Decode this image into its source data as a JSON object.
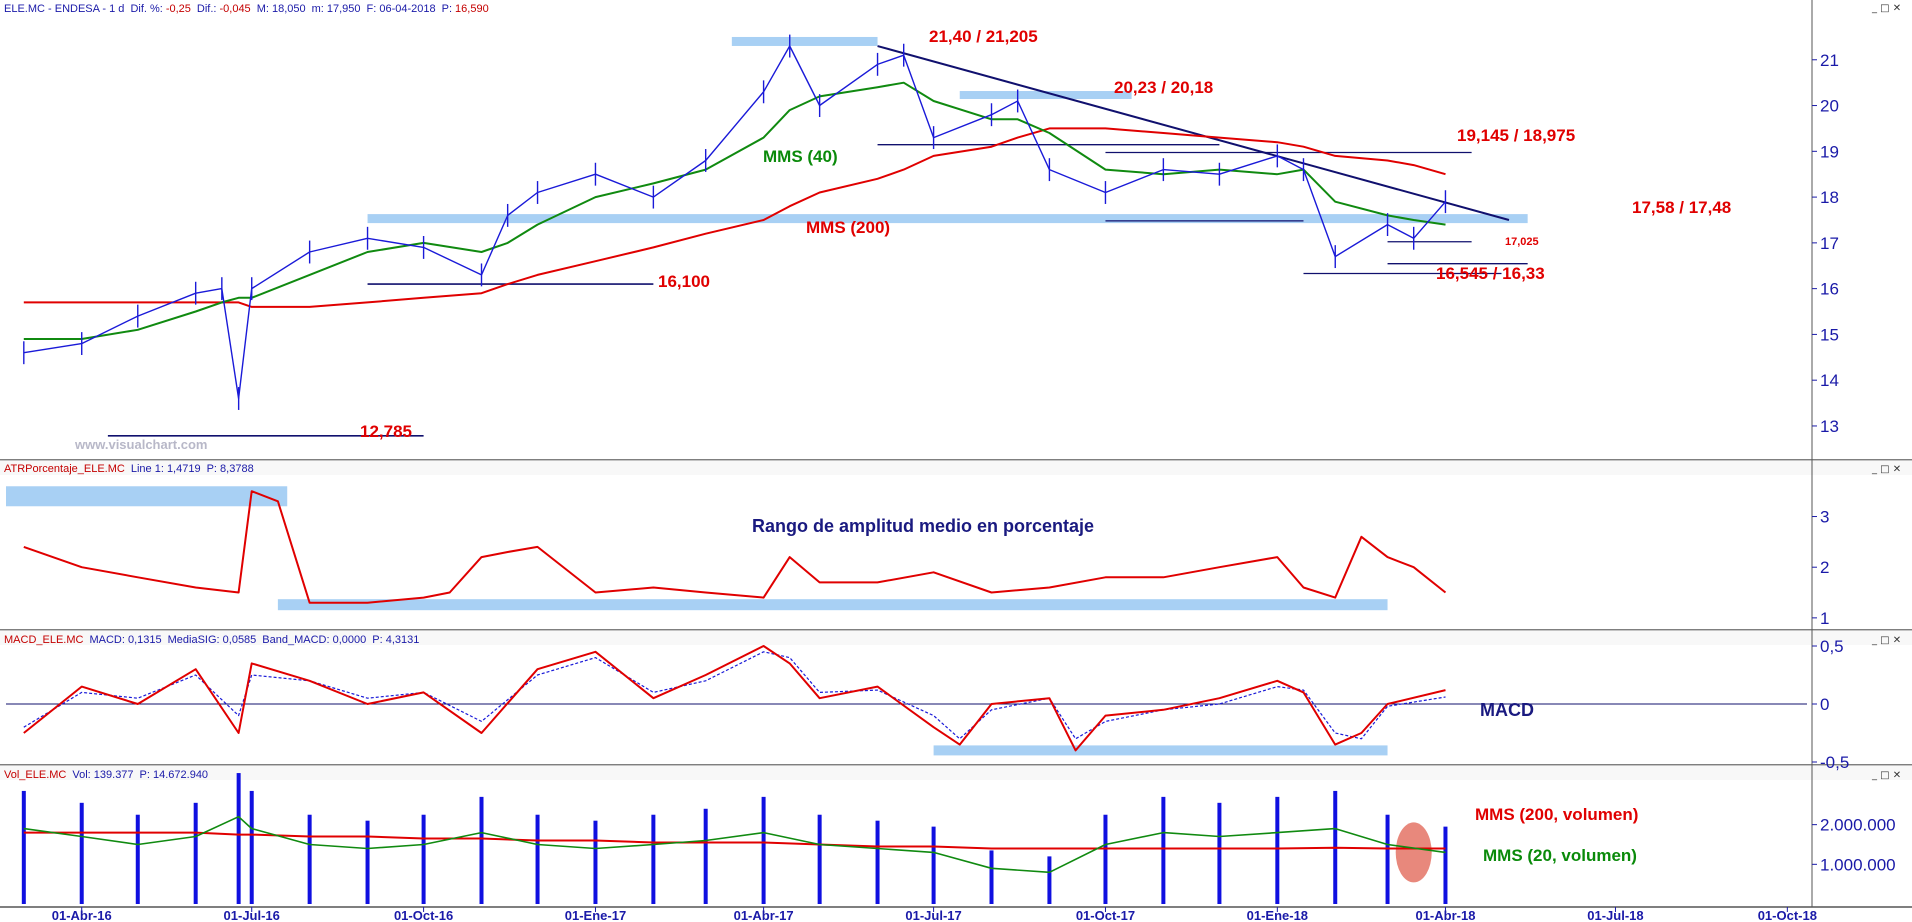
{
  "panels": {
    "price": {
      "header_parts": [
        "ELE.MC - ENDESA - 1 d",
        "Dif. %:",
        "-0,25",
        "Dif.:",
        "-0,045",
        "M: 18,050",
        "m: 17,950",
        "F: 06-04-2018",
        "P:",
        "16,590"
      ],
      "y_ticks": [
        "21",
        "20",
        "19",
        "18",
        "17",
        "16",
        "15",
        "14",
        "13"
      ],
      "annotations": {
        "resist_top": "21,40 / 21,205",
        "resist_2": "20,23 / 20,18",
        "resist_3": "19,145 / 18,975",
        "support_main": "17,58 / 17,48",
        "support_17025": "17,025",
        "support_low": "16,545 / 16,33",
        "support_16100": "16,100",
        "support_min": "12,785",
        "mms40": "MMS (40)",
        "mms200": "MMS (200)"
      },
      "watermark": "www.visualchart.com"
    },
    "atr": {
      "header_parts": [
        "ATRPorcentaje_ELE.MC",
        "Line 1: 1,4719",
        "P: 8,3788"
      ],
      "title": "Rango de amplitud medio en porcentaje",
      "y_ticks": [
        "3",
        "2",
        "1"
      ]
    },
    "macd": {
      "header_parts": [
        "MACD_ELE.MC",
        "MACD: 0,1315",
        "MediaSIG: 0,0585",
        "Band_MACD: 0,0000",
        "P: 4,3131"
      ],
      "title": "MACD",
      "y_ticks": [
        "0,5",
        "0",
        "-0,5"
      ]
    },
    "volume": {
      "header_parts": [
        "Vol_ELE.MC",
        "Vol: 139.377",
        "P: 14.672.940"
      ],
      "y_ticks": [
        "2.000.000",
        "1.000.000"
      ],
      "annotations": {
        "mms200_vol": "MMS (200, volumen)",
        "mms20_vol": "MMS (20, volumen)"
      }
    }
  },
  "x_ticks": [
    "01-Abr-16",
    "01-Jul-16",
    "01-Oct-16",
    "01-Ene-17",
    "01-Abr-17",
    "01-Jul-17",
    "01-Oct-17",
    "01-Ene-18",
    "01-Abr-18",
    "01-Jul-18",
    "01-Oct-18"
  ],
  "colors": {
    "price": "#1a1ad8",
    "mms40": "#108a10",
    "mms200": "#e00000",
    "trendline": "#10106e",
    "support_band": "#a8d0f4",
    "axis_text": "#1a1aa8",
    "volume_bar": "#1010e0",
    "atr_line": "#e00000",
    "macd_line": "#e00000",
    "signal_line": "#1a1ad8"
  },
  "window_controls": "_ □ ✕",
  "chart_data": [
    {
      "type": "line",
      "title": "ELE.MC - ENDESA - 1 d",
      "x": [
        "01-Mar-16",
        "01-Abr-16",
        "01-May-16",
        "01-Jun-16",
        "15-Jun-16",
        "24-Jun-16",
        "01-Jul-16",
        "01-Ago-16",
        "01-Sep-16",
        "01-Oct-16",
        "01-Nov-16",
        "15-Nov-16",
        "01-Dic-16",
        "01-Ene-17",
        "01-Feb-17",
        "01-Mar-17",
        "01-Abr-17",
        "15-Abr-17",
        "01-May-17",
        "01-Jun-17",
        "15-Jun-17",
        "01-Jul-17",
        "01-Ago-17",
        "15-Ago-17",
        "01-Sep-17",
        "01-Oct-17",
        "01-Nov-17",
        "01-Dic-17",
        "01-Ene-18",
        "15-Ene-18",
        "01-Feb-18",
        "01-Mar-18",
        "15-Mar-18",
        "01-Abr-18"
      ],
      "series": [
        {
          "name": "ELE.MC",
          "values": [
            14.6,
            14.8,
            15.4,
            15.9,
            16.0,
            13.6,
            16.0,
            16.8,
            17.1,
            16.9,
            16.3,
            17.6,
            18.1,
            18.5,
            18.0,
            18.8,
            20.3,
            21.3,
            20.0,
            20.9,
            21.1,
            19.3,
            19.8,
            20.1,
            18.6,
            18.1,
            18.6,
            18.5,
            18.9,
            18.6,
            16.7,
            17.4,
            17.1,
            17.9
          ]
        },
        {
          "name": "MMS (40)",
          "values": [
            14.9,
            14.9,
            15.1,
            15.5,
            15.7,
            15.8,
            15.8,
            16.3,
            16.8,
            17.0,
            16.8,
            17.0,
            17.4,
            18.0,
            18.3,
            18.6,
            19.3,
            19.9,
            20.2,
            20.4,
            20.5,
            20.1,
            19.7,
            19.7,
            19.4,
            18.6,
            18.5,
            18.6,
            18.5,
            18.6,
            17.9,
            17.6,
            17.5,
            17.4
          ]
        },
        {
          "name": "MMS (200)",
          "values": [
            15.7,
            15.7,
            15.7,
            15.7,
            15.7,
            15.7,
            15.6,
            15.6,
            15.7,
            15.8,
            15.9,
            16.1,
            16.3,
            16.6,
            16.9,
            17.2,
            17.5,
            17.8,
            18.1,
            18.4,
            18.6,
            18.9,
            19.1,
            19.3,
            19.5,
            19.5,
            19.4,
            19.3,
            19.2,
            19.1,
            18.9,
            18.8,
            18.7,
            18.5
          ]
        }
      ],
      "ylim": [
        12.3,
        22.0
      ],
      "grid": false,
      "horizontal_levels": [
        21.4,
        21.205,
        20.23,
        20.18,
        19.145,
        18.975,
        17.58,
        17.48,
        17.025,
        16.545,
        16.33,
        16.1,
        12.785
      ]
    },
    {
      "type": "line",
      "title": "Rango de amplitud medio en porcentaje",
      "x": [
        "01-Mar-16",
        "01-Abr-16",
        "01-May-16",
        "01-Jun-16",
        "24-Jun-16",
        "01-Jul-16",
        "15-Jul-16",
        "01-Ago-16",
        "01-Sep-16",
        "01-Oct-16",
        "15-Oct-16",
        "01-Nov-16",
        "15-Nov-16",
        "01-Dic-16",
        "01-Ene-17",
        "01-Feb-17",
        "01-Mar-17",
        "01-Abr-17",
        "15-Abr-17",
        "01-May-17",
        "01-Jun-17",
        "01-Jul-17",
        "01-Ago-17",
        "01-Sep-17",
        "01-Oct-17",
        "01-Nov-17",
        "01-Dic-17",
        "01-Ene-18",
        "15-Ene-18",
        "01-Feb-18",
        "15-Feb-18",
        "01-Mar-18",
        "15-Mar-18",
        "01-Abr-18"
      ],
      "series": [
        {
          "name": "ATRPorcentaje_ELE.MC",
          "values": [
            2.4,
            2.0,
            1.8,
            1.6,
            1.5,
            3.5,
            3.3,
            1.3,
            1.3,
            1.4,
            1.5,
            2.2,
            2.3,
            2.4,
            1.5,
            1.6,
            1.5,
            1.4,
            2.2,
            1.7,
            1.7,
            1.9,
            1.5,
            1.6,
            1.8,
            1.8,
            2.0,
            2.2,
            1.6,
            1.4,
            2.6,
            2.2,
            2.0,
            1.5
          ]
        }
      ],
      "ylim": [
        0.8,
        3.8
      ]
    },
    {
      "type": "line",
      "title": "MACD",
      "x": [
        "01-Mar-16",
        "01-Abr-16",
        "01-May-16",
        "01-Jun-16",
        "24-Jun-16",
        "01-Jul-16",
        "01-Ago-16",
        "01-Sep-16",
        "01-Oct-16",
        "01-Nov-16",
        "01-Dic-16",
        "01-Ene-17",
        "01-Feb-17",
        "01-Mar-17",
        "01-Abr-17",
        "15-Abr-17",
        "01-May-17",
        "01-Jun-17",
        "01-Jul-17",
        "15-Jul-17",
        "01-Ago-17",
        "01-Sep-17",
        "15-Sep-17",
        "01-Oct-17",
        "01-Nov-17",
        "01-Dic-17",
        "01-Ene-18",
        "15-Ene-18",
        "01-Feb-18",
        "15-Feb-18",
        "01-Mar-18",
        "01-Abr-18"
      ],
      "series": [
        {
          "name": "MACD",
          "values": [
            -0.25,
            0.15,
            0.0,
            0.3,
            -0.25,
            0.35,
            0.2,
            0.0,
            0.1,
            -0.25,
            0.3,
            0.45,
            0.05,
            0.25,
            0.5,
            0.35,
            0.05,
            0.15,
            -0.2,
            -0.35,
            0.0,
            0.05,
            -0.4,
            -0.1,
            -0.05,
            0.05,
            0.2,
            0.1,
            -0.35,
            -0.25,
            0.0,
            0.12
          ]
        },
        {
          "name": "MediaSIG",
          "values": [
            -0.2,
            0.1,
            0.05,
            0.25,
            -0.1,
            0.25,
            0.2,
            0.05,
            0.1,
            -0.15,
            0.25,
            0.4,
            0.1,
            0.2,
            0.45,
            0.4,
            0.1,
            0.12,
            -0.1,
            -0.3,
            -0.05,
            0.05,
            -0.3,
            -0.15,
            -0.05,
            0.0,
            0.15,
            0.12,
            -0.25,
            -0.3,
            -0.02,
            0.06
          ]
        }
      ],
      "ylim": [
        -0.5,
        0.5
      ]
    },
    {
      "type": "bar",
      "title": "Vol_ELE.MC",
      "x": [
        "01-Mar-16",
        "01-Abr-16",
        "01-May-16",
        "01-Jun-16",
        "24-Jun-16",
        "01-Jul-16",
        "01-Ago-16",
        "01-Sep-16",
        "01-Oct-16",
        "01-Nov-16",
        "01-Dic-16",
        "01-Ene-17",
        "01-Feb-17",
        "01-Mar-17",
        "01-Abr-17",
        "01-May-17",
        "01-Jun-17",
        "01-Jul-17",
        "01-Ago-17",
        "01-Sep-17",
        "01-Oct-17",
        "01-Nov-17",
        "01-Dic-17",
        "01-Ene-18",
        "01-Feb-18",
        "01-Mar-18",
        "01-Abr-18"
      ],
      "series": [
        {
          "name": "MMS (20, volumen)",
          "values": [
            1900000,
            1700000,
            1500000,
            1700000,
            2200000,
            1900000,
            1500000,
            1400000,
            1500000,
            1800000,
            1500000,
            1400000,
            1500000,
            1600000,
            1800000,
            1500000,
            1400000,
            1300000,
            900000,
            800000,
            1500000,
            1800000,
            1700000,
            1800000,
            1900000,
            1500000,
            1300000
          ]
        },
        {
          "name": "MMS (200, volumen)",
          "values": [
            1800000,
            1800000,
            1800000,
            1800000,
            1750000,
            1750000,
            1700000,
            1700000,
            1650000,
            1650000,
            1600000,
            1600000,
            1550000,
            1550000,
            1550000,
            1500000,
            1450000,
            1450000,
            1400000,
            1400000,
            1400000,
            1400000,
            1400000,
            1400000,
            1420000,
            1400000,
            1400000
          ]
        }
      ],
      "ylim": [
        0,
        3100000
      ]
    }
  ]
}
